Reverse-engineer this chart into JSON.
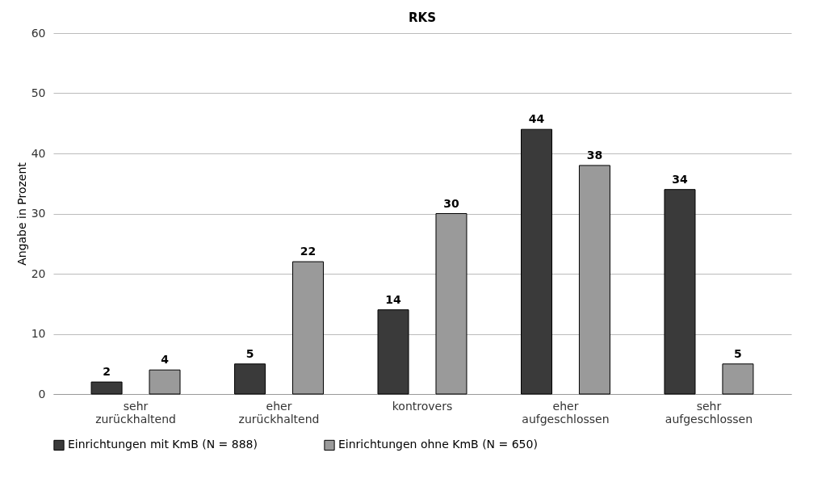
{
  "chart_data": {
    "type": "bar",
    "title": "RKS",
    "ylabel": "Angabe in Prozent",
    "categories": [
      "sehr zurückhaltend",
      "eher zurückhaltend",
      "kontrovers",
      "eher aufgeschlossen",
      "sehr aufgeschlossen"
    ],
    "series": [
      {
        "name": "Einrichtungen mit KmB (N = 888)",
        "color": "#3a3a3a",
        "values": [
          2,
          5,
          14,
          44,
          34
        ]
      },
      {
        "name": "Einrichtungen ohne KmB (N = 650)",
        "color": "#9a9a9a",
        "values": [
          4,
          22,
          30,
          38,
          5
        ]
      }
    ],
    "ylim": [
      0,
      60
    ],
    "yticks": [
      0,
      10,
      20,
      30,
      40,
      50,
      60
    ],
    "grid": "y",
    "legend": "bottom",
    "data_labels": true
  }
}
